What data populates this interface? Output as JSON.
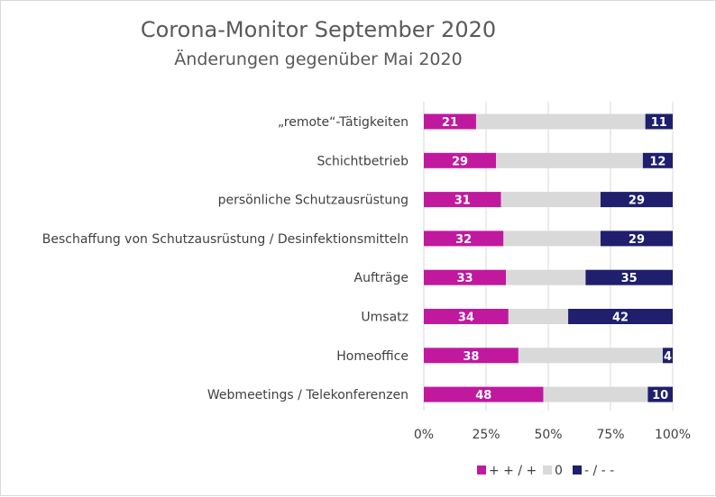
{
  "chart_data": {
    "type": "bar",
    "orientation": "horizontal",
    "stacked": "percent",
    "title": "Corona-Monitor September 2020",
    "subtitle": "Änderungen gegenüber Mai 2020",
    "categories": [
      "„remote“-Tätigkeiten",
      "Schichtbetrieb",
      "persönliche Schutzausrüstung",
      "Beschaffung von Schutzausrüstung / Desinfektionsmitteln",
      "Aufträge",
      "Umsatz",
      "Homeoffice",
      "Webmeetings / Telekonferenzen"
    ],
    "series": [
      {
        "name": "+ + / +",
        "color": "#c0199e",
        "values": [
          21,
          29,
          31,
          32,
          33,
          34,
          38,
          48
        ],
        "show_labels": true
      },
      {
        "name": "0",
        "color": "#d9d9d9",
        "values": [
          68,
          59,
          40,
          39,
          32,
          24,
          58,
          42
        ],
        "show_labels": false
      },
      {
        "name": "- / - -",
        "color": "#1f1f6e",
        "values": [
          11,
          12,
          29,
          29,
          35,
          42,
          4,
          10
        ],
        "show_labels": true
      }
    ],
    "xlim": [
      0,
      100
    ],
    "x_ticks": [
      "0%",
      "25%",
      "50%",
      "75%",
      "100%"
    ],
    "grid": "vertical",
    "legend_position": "bottom"
  }
}
